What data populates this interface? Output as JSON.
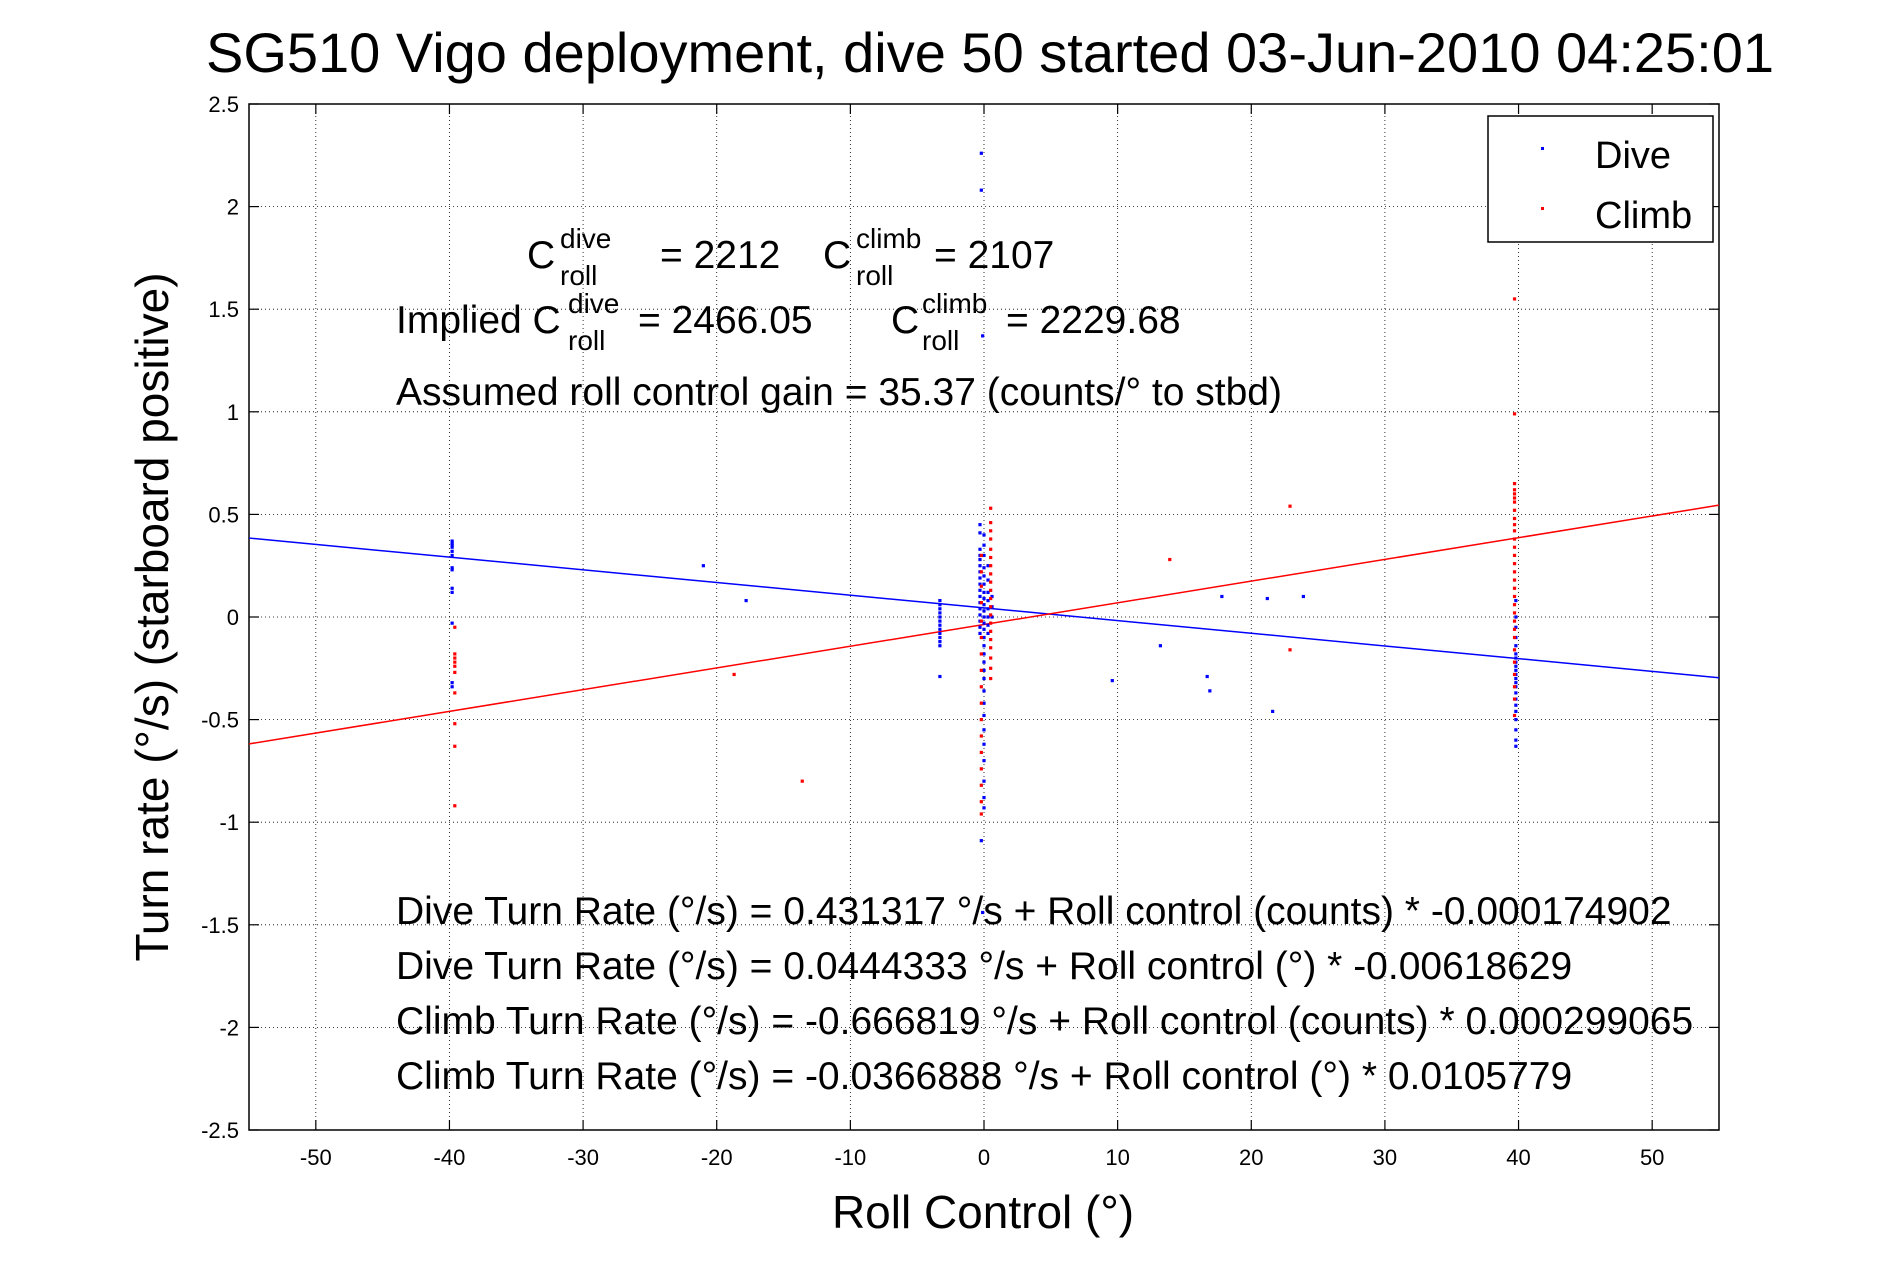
{
  "chart_data": {
    "type": "scatter",
    "title": "SG510 Vigo deployment, dive 50 started 03-Jun-2010 04:25:01",
    "xlabel": "Roll Control (°)",
    "ylabel": "Turn rate (°/s)  (starboard positive)",
    "xlim": [
      -55,
      55
    ],
    "ylim": [
      -2.5,
      2.5
    ],
    "xticks": [
      -50,
      -40,
      -30,
      -20,
      -10,
      0,
      10,
      20,
      30,
      40,
      50
    ],
    "yticks": [
      -2.5,
      -2,
      -1.5,
      -1,
      -0.5,
      0,
      0.5,
      1,
      1.5,
      2,
      2.5
    ],
    "grid": true,
    "legend_position": "top-right",
    "colors": {
      "dive": "#0000ff",
      "climb": "#ff0000"
    },
    "annotations": {
      "c_roll_dive_prefix": "C",
      "c_roll_dive_sup": "dive",
      "c_roll_dive_sub": "roll",
      "c_roll_dive_value": "= 2212",
      "c_roll_climb_prefix": "C",
      "c_roll_climb_sup": "climb",
      "c_roll_climb_sub": "roll",
      "c_roll_climb_value": "= 2107",
      "implied_dive_prefix": "Implied C",
      "implied_dive_sup": "dive",
      "implied_dive_sub": "roll",
      "implied_dive_value": "= 2466.05",
      "implied_climb_prefix": "C",
      "implied_climb_sup": "climb",
      "implied_climb_sub": "roll",
      "implied_climb_value": "= 2229.68",
      "gain": "Assumed roll control gain = 35.37 (counts/° to stbd)",
      "eq1": "Dive Turn Rate (°/s) = 0.431317 °/s + Roll control (counts) * -0.000174902",
      "eq2": "Dive Turn Rate (°/s) = 0.0444333 °/s + Roll control (°) * -0.00618629",
      "eq3": "Climb Turn Rate (°/s) = -0.666819 °/s + Roll control (counts) * 0.000299065",
      "eq4": "Climb Turn Rate (°/s) = -0.0366888 °/s + Roll control (°) * 0.0105779"
    },
    "fit_lines": [
      {
        "name": "Dive",
        "intercept": 0.0444333,
        "slope": -0.00618629
      },
      {
        "name": "Climb",
        "intercept": -0.0366888,
        "slope": 0.0105779
      }
    ],
    "series": [
      {
        "name": "Dive",
        "points": [
          [
            -39.8,
            0.37
          ],
          [
            -39.8,
            0.36
          ],
          [
            -39.8,
            0.35
          ],
          [
            -39.8,
            0.34
          ],
          [
            -39.8,
            0.32
          ],
          [
            -39.8,
            0.3
          ],
          [
            -39.8,
            0.24
          ],
          [
            -39.8,
            0.23
          ],
          [
            -39.8,
            0.14
          ],
          [
            -39.8,
            0.12
          ],
          [
            -39.8,
            -0.03
          ],
          [
            -39.8,
            -0.32
          ],
          [
            -39.8,
            -0.34
          ],
          [
            -21,
            0.25
          ],
          [
            -17.8,
            0.08
          ],
          [
            -3.3,
            0.08
          ],
          [
            -3.3,
            0.06
          ],
          [
            -3.3,
            0.04
          ],
          [
            -3.3,
            0.02
          ],
          [
            -3.3,
            0.0
          ],
          [
            -3.3,
            -0.02
          ],
          [
            -3.3,
            -0.04
          ],
          [
            -3.3,
            -0.06
          ],
          [
            -3.3,
            -0.08
          ],
          [
            -3.3,
            -0.1
          ],
          [
            -3.3,
            -0.12
          ],
          [
            -3.3,
            -0.14
          ],
          [
            -3.3,
            -0.29
          ],
          [
            -0.2,
            2.26
          ],
          [
            -0.2,
            2.08
          ],
          [
            -0.1,
            1.37
          ],
          [
            -0.1,
            -1.44
          ],
          [
            -0.2,
            -1.09
          ],
          [
            -0.3,
            0.45
          ],
          [
            -0.3,
            0.41
          ],
          [
            -0.3,
            0.33
          ],
          [
            -0.3,
            0.3
          ],
          [
            -0.3,
            0.28
          ],
          [
            -0.3,
            0.25
          ],
          [
            -0.3,
            0.22
          ],
          [
            -0.3,
            0.19
          ],
          [
            -0.3,
            0.16
          ],
          [
            -0.3,
            0.13
          ],
          [
            -0.3,
            0.1
          ],
          [
            -0.3,
            0.07
          ],
          [
            -0.3,
            0.04
          ],
          [
            -0.3,
            0.01
          ],
          [
            -0.3,
            -0.02
          ],
          [
            -0.3,
            -0.05
          ],
          [
            -0.3,
            -0.08
          ],
          [
            0.0,
            0.4
          ],
          [
            0.0,
            0.35
          ],
          [
            0.0,
            0.3
          ],
          [
            0.0,
            0.24
          ],
          [
            0.0,
            0.2
          ],
          [
            0.0,
            0.16
          ],
          [
            0.0,
            0.12
          ],
          [
            0.0,
            0.09
          ],
          [
            0.0,
            0.06
          ],
          [
            0.0,
            0.03
          ],
          [
            0.0,
            0.0
          ],
          [
            0.0,
            -0.03
          ],
          [
            0.0,
            -0.06
          ],
          [
            0.0,
            -0.1
          ],
          [
            0.0,
            -0.14
          ],
          [
            0.0,
            -0.18
          ],
          [
            0.0,
            -0.22
          ],
          [
            0.0,
            -0.26
          ],
          [
            0.0,
            -0.3
          ],
          [
            0.0,
            -0.36
          ],
          [
            0.0,
            -0.42
          ],
          [
            0.0,
            -0.48
          ],
          [
            0.0,
            -0.55
          ],
          [
            0.0,
            -0.62
          ],
          [
            0.0,
            -0.7
          ],
          [
            0.0,
            -0.8
          ],
          [
            0.0,
            -0.88
          ],
          [
            0.0,
            -0.93
          ],
          [
            0.3,
            0.25
          ],
          [
            0.3,
            0.18
          ],
          [
            0.3,
            0.12
          ],
          [
            0.3,
            0.08
          ],
          [
            0.3,
            0.04
          ],
          [
            0.3,
            0.0
          ],
          [
            0.3,
            -0.04
          ],
          [
            0.3,
            -0.08
          ],
          [
            0.6,
            0.1
          ],
          [
            0.6,
            0.05
          ],
          [
            0.6,
            0.0
          ],
          [
            9.6,
            -0.31
          ],
          [
            13.2,
            -0.14
          ],
          [
            16.7,
            -0.29
          ],
          [
            16.9,
            -0.36
          ],
          [
            17.8,
            0.1
          ],
          [
            21.2,
            0.09
          ],
          [
            21.6,
            -0.46
          ],
          [
            23.9,
            0.1
          ],
          [
            39.8,
            0.08
          ],
          [
            39.8,
            0.0
          ],
          [
            39.8,
            -0.05
          ],
          [
            39.8,
            -0.1
          ],
          [
            39.8,
            -0.14
          ],
          [
            39.8,
            -0.18
          ],
          [
            39.8,
            -0.2
          ],
          [
            39.8,
            -0.22
          ],
          [
            39.8,
            -0.24
          ],
          [
            39.8,
            -0.26
          ],
          [
            39.8,
            -0.28
          ],
          [
            39.8,
            -0.3
          ],
          [
            39.8,
            -0.32
          ],
          [
            39.8,
            -0.34
          ],
          [
            39.8,
            -0.37
          ],
          [
            39.8,
            -0.4
          ],
          [
            39.8,
            -0.43
          ],
          [
            39.8,
            -0.46
          ],
          [
            39.8,
            -0.5
          ],
          [
            39.8,
            -0.55
          ],
          [
            39.8,
            -0.6
          ],
          [
            39.8,
            -0.63
          ]
        ]
      },
      {
        "name": "Climb",
        "points": [
          [
            -39.6,
            -0.05
          ],
          [
            -39.6,
            -0.18
          ],
          [
            -39.6,
            -0.2
          ],
          [
            -39.6,
            -0.22
          ],
          [
            -39.6,
            -0.24
          ],
          [
            -39.6,
            -0.27
          ],
          [
            -39.6,
            -0.37
          ],
          [
            -39.6,
            -0.52
          ],
          [
            -39.6,
            -0.63
          ],
          [
            -39.6,
            -0.92
          ],
          [
            -18.7,
            -0.28
          ],
          [
            -13.6,
            -0.8
          ],
          [
            0.5,
            0.53
          ],
          [
            0.5,
            0.46
          ],
          [
            0.5,
            0.42
          ],
          [
            0.5,
            0.38
          ],
          [
            0.5,
            0.33
          ],
          [
            0.5,
            0.29
          ],
          [
            0.5,
            0.25
          ],
          [
            0.5,
            0.21
          ],
          [
            0.5,
            0.17
          ],
          [
            0.5,
            0.13
          ],
          [
            0.5,
            0.09
          ],
          [
            0.5,
            0.05
          ],
          [
            0.5,
            0.01
          ],
          [
            0.5,
            -0.03
          ],
          [
            0.5,
            -0.07
          ],
          [
            0.5,
            -0.11
          ],
          [
            0.5,
            -0.15
          ],
          [
            0.5,
            -0.2
          ],
          [
            0.5,
            -0.25
          ],
          [
            0.5,
            -0.3
          ],
          [
            -0.2,
            0.3
          ],
          [
            -0.2,
            0.22
          ],
          [
            -0.2,
            0.15
          ],
          [
            -0.2,
            0.07
          ],
          [
            -0.2,
            -0.02
          ],
          [
            -0.2,
            -0.1
          ],
          [
            -0.2,
            -0.18
          ],
          [
            -0.2,
            -0.26
          ],
          [
            -0.2,
            -0.34
          ],
          [
            -0.2,
            -0.42
          ],
          [
            -0.2,
            -0.5
          ],
          [
            -0.2,
            -0.58
          ],
          [
            -0.2,
            -0.66
          ],
          [
            -0.2,
            -0.74
          ],
          [
            -0.2,
            -0.82
          ],
          [
            -0.2,
            -0.9
          ],
          [
            -0.2,
            -0.96
          ],
          [
            13.9,
            0.28
          ],
          [
            22.9,
            0.54
          ],
          [
            22.9,
            -0.16
          ],
          [
            39.7,
            1.55
          ],
          [
            39.7,
            0.99
          ],
          [
            39.7,
            0.65
          ],
          [
            39.7,
            0.62
          ],
          [
            39.7,
            0.6
          ],
          [
            39.7,
            0.58
          ],
          [
            39.7,
            0.56
          ],
          [
            39.7,
            0.52
          ],
          [
            39.7,
            0.48
          ],
          [
            39.7,
            0.45
          ],
          [
            39.7,
            0.42
          ],
          [
            39.7,
            0.38
          ],
          [
            39.7,
            0.34
          ],
          [
            39.7,
            0.3
          ],
          [
            39.7,
            0.26
          ],
          [
            39.7,
            0.22
          ],
          [
            39.7,
            0.18
          ],
          [
            39.7,
            0.14
          ],
          [
            39.7,
            0.1
          ],
          [
            39.7,
            0.06
          ],
          [
            39.7,
            0.02
          ],
          [
            39.7,
            -0.02
          ],
          [
            39.7,
            -0.06
          ],
          [
            39.7,
            -0.1
          ],
          [
            39.7,
            -0.16
          ],
          [
            39.7,
            -0.22
          ],
          [
            39.7,
            -0.28
          ],
          [
            39.7,
            -0.34
          ],
          [
            39.7,
            -0.4
          ],
          [
            39.7,
            -0.48
          ]
        ]
      }
    ]
  }
}
